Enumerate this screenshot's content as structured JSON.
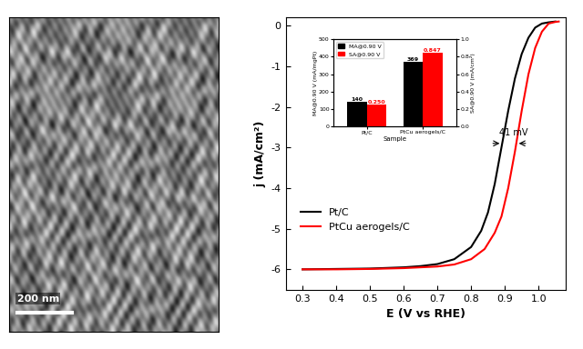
{
  "micrograph": {
    "scale_bar": "200 nm"
  },
  "chart_data": [
    {
      "type": "line",
      "x_label": "E (V vs RHE)",
      "y_label": "j (mA/cm²)",
      "xlim": [
        0.25,
        1.08
      ],
      "xticks": [
        0.3,
        0.4,
        0.5,
        0.6,
        0.7,
        0.8,
        0.9,
        1.0
      ],
      "ylim": [
        -6.5,
        0.2
      ],
      "yticks": [
        -6,
        -5,
        -4,
        -3,
        -2,
        -1,
        0
      ],
      "legend": "lower left",
      "annotations": [
        {
          "text": "41 mV",
          "y": -2.9
        }
      ],
      "series": [
        {
          "name": "Pt/C",
          "color": "#000000",
          "x": [
            0.3,
            0.4,
            0.5,
            0.6,
            0.65,
            0.7,
            0.75,
            0.8,
            0.83,
            0.85,
            0.87,
            0.89,
            0.91,
            0.93,
            0.95,
            0.97,
            0.99,
            1.01,
            1.03,
            1.05
          ],
          "values": [
            -6.0,
            -5.99,
            -5.98,
            -5.95,
            -5.92,
            -5.87,
            -5.75,
            -5.45,
            -5.05,
            -4.6,
            -3.9,
            -3.0,
            -2.1,
            -1.3,
            -0.7,
            -0.3,
            -0.05,
            0.05,
            0.08,
            0.1
          ]
        },
        {
          "name": "PtCu aerogels/C",
          "color": "#ff0000",
          "x": [
            0.3,
            0.4,
            0.5,
            0.6,
            0.7,
            0.75,
            0.8,
            0.84,
            0.87,
            0.89,
            0.91,
            0.93,
            0.95,
            0.97,
            0.99,
            1.01,
            1.03,
            1.05,
            1.06
          ],
          "values": [
            -6.0,
            -6.0,
            -5.99,
            -5.97,
            -5.93,
            -5.88,
            -5.75,
            -5.5,
            -5.1,
            -4.7,
            -4.0,
            -3.1,
            -2.1,
            -1.2,
            -0.55,
            -0.15,
            0.05,
            0.09,
            0.1
          ]
        }
      ]
    },
    {
      "type": "bar",
      "x_label": "Sample",
      "y_label": "MA@0.90 V (mA/mgPt)",
      "y2_label": "SA@0.90 V (mA/cm²)",
      "categories": [
        "Pt/C",
        "PtCu aerogels/C"
      ],
      "ylim": [
        0,
        500
      ],
      "yticks": [
        0,
        100,
        200,
        300,
        400,
        500
      ],
      "y2lim": [
        0.0,
        1.0
      ],
      "y2ticks": [
        0.0,
        0.2,
        0.4,
        0.6,
        0.8,
        1.0
      ],
      "legend": "upper left",
      "data_labels": true,
      "series": [
        {
          "name": "MA@0.90 V",
          "color": "#000000",
          "values": [
            140,
            369
          ]
        },
        {
          "name": "SA@0.90 V",
          "color": "#ff0000",
          "axis": "y2",
          "values": [
            0.25,
            0.847
          ],
          "value_labels": [
            "0.250",
            "0.847"
          ]
        }
      ]
    }
  ]
}
